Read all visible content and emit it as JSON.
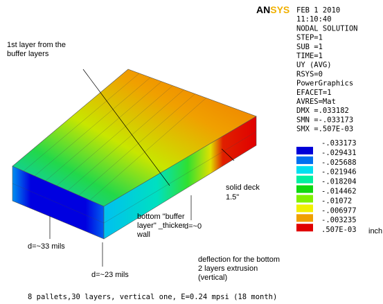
{
  "logo": [
    "AN",
    "SYS"
  ],
  "info": [
    "FEB  1 2010",
    "11:10:40",
    "NODAL SOLUTION",
    "STEP=1",
    "SUB =1",
    "TIME=1",
    "UY        (AVG)",
    "RSYS=0",
    "PowerGraphics",
    "EFACET=1",
    "AVRES=Mat",
    "DMX =.033182",
    "SMN =-.033173",
    "SMX =.507E-03"
  ],
  "legend": {
    "levels": [
      "-.033173",
      "-.029431",
      "-.025688",
      "-.021946",
      "-.018204",
      "-.014462",
      "-.01072",
      "-.006977",
      "-.003235",
      ".507E-03"
    ],
    "unit": "inch"
  },
  "annotations": {
    "first_layer": [
      "1st layer from the",
      "buffer layers"
    ],
    "solid_deck": [
      "solid deck",
      "1.5\""
    ],
    "d0": "d=~0",
    "d33": "d=~33 mils",
    "d23": "d=~23 mils",
    "bottom_layer": [
      "bottom \"buffer",
      "layer\" _thicker",
      "wall"
    ],
    "deflection": [
      "deflection for the bottom",
      "2 layers extrusion",
      "(vertical)"
    ]
  },
  "caption": "8 pallets,30 layers, vertical one, E=0.24 mpsi (18 month)"
}
